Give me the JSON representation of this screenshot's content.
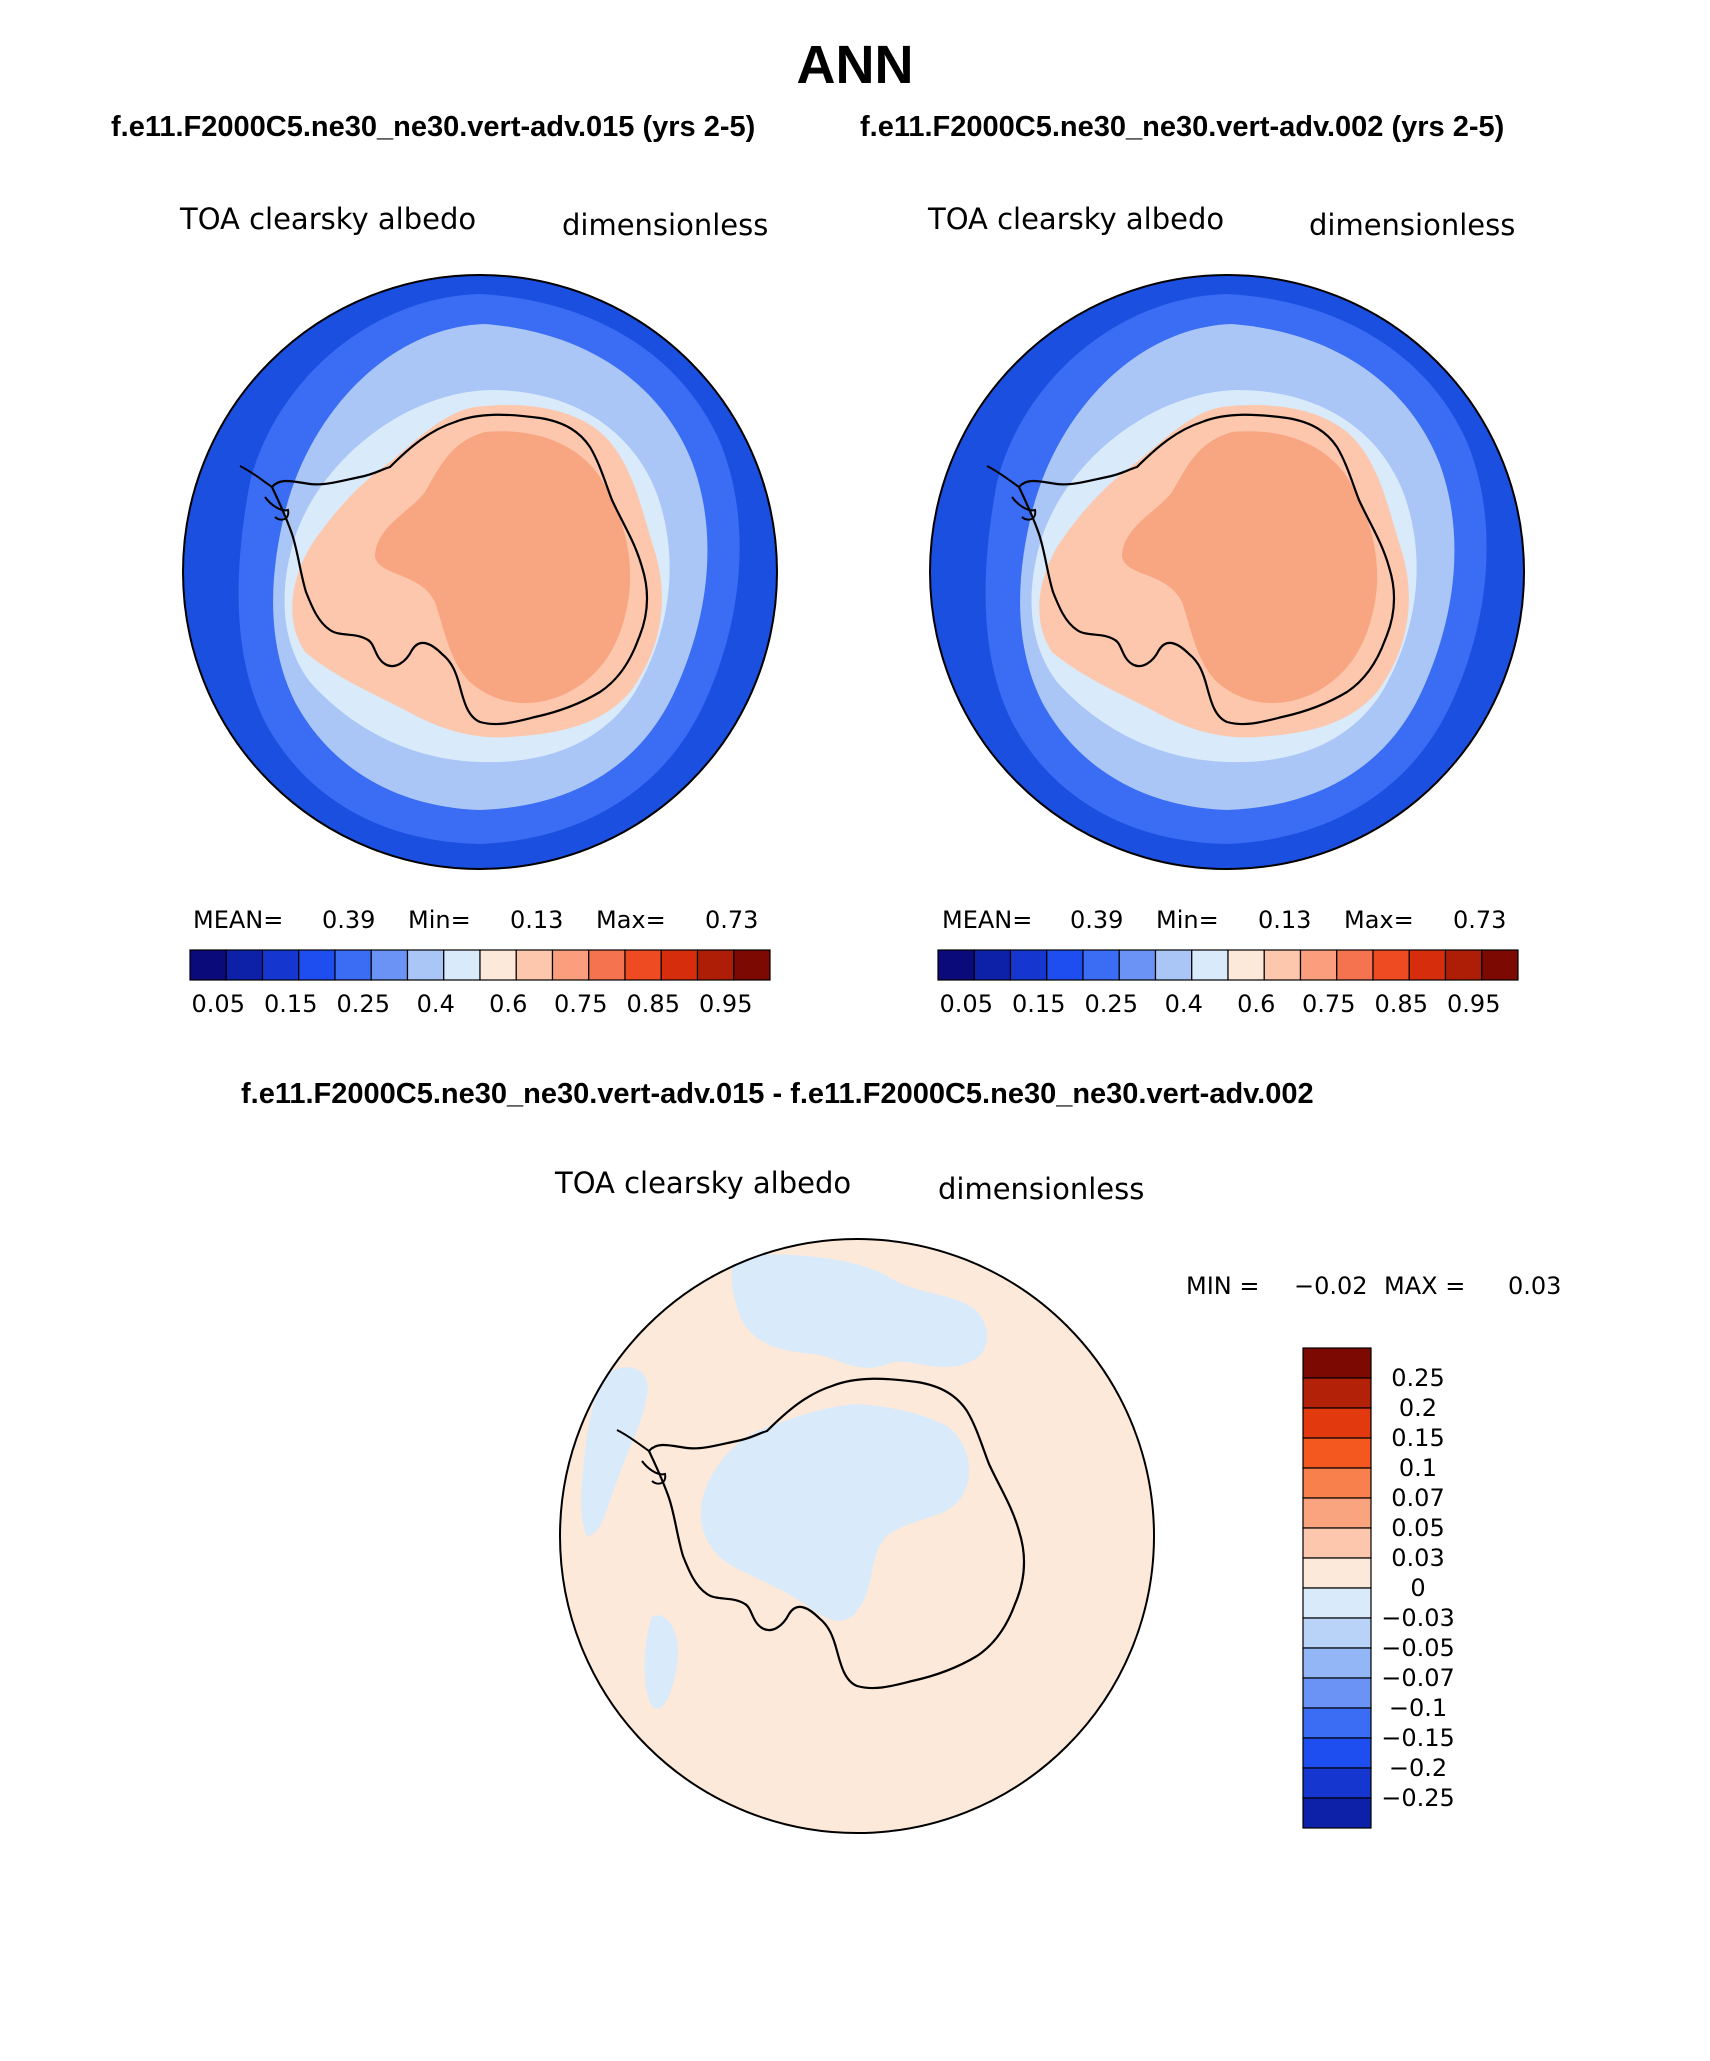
{
  "figure": {
    "title": "ANN",
    "case_header_left": "f.e11.F2000C5.ne30_ne30.vert-adv.015 (yrs 2-5)",
    "case_header_right": "f.e11.F2000C5.ne30_ne30.vert-adv.002 (yrs 2-5)",
    "diff_header": "f.e11.F2000C5.ne30_ne30.vert-adv.015 - f.e11.F2000C5.ne30_ne30.vert-adv.002"
  },
  "panels": [
    {
      "variable": "TOA clearsky albedo",
      "units": "dimensionless",
      "stats": {
        "mean_label": "MEAN=",
        "mean": "0.39",
        "min_label": "Min=",
        "min": "0.13",
        "max_label": "Max=",
        "max": "0.73"
      },
      "colorbar": {
        "colors": [
          "#0a0a7a",
          "#0d21a8",
          "#1537d0",
          "#1f4ef0",
          "#3a6cf4",
          "#6b93f5",
          "#a9c6f7",
          "#d9eafb",
          "#fde9d9",
          "#fcc7ad",
          "#fa9e7e",
          "#f5744f",
          "#ee4b22",
          "#d62e0d",
          "#ae1e07",
          "#7d0a02"
        ],
        "labels": [
          "0.05",
          "0.15",
          "0.25",
          "0.4",
          "0.6",
          "0.75",
          "0.85",
          "0.95"
        ]
      }
    },
    {
      "variable": "TOA clearsky albedo",
      "units": "dimensionless",
      "stats": {
        "mean_label": "MEAN=",
        "mean": "0.39",
        "min_label": "Min=",
        "min": "0.13",
        "max_label": "Max=",
        "max": "0.73"
      },
      "colorbar": {
        "colors": [
          "#0a0a7a",
          "#0d21a8",
          "#1537d0",
          "#1f4ef0",
          "#3a6cf4",
          "#6b93f5",
          "#a9c6f7",
          "#d9eafb",
          "#fde9d9",
          "#fcc7ad",
          "#fa9e7e",
          "#f5744f",
          "#ee4b22",
          "#d62e0d",
          "#ae1e07",
          "#7d0a02"
        ],
        "labels": [
          "0.05",
          "0.15",
          "0.25",
          "0.4",
          "0.6",
          "0.75",
          "0.85",
          "0.95"
        ]
      }
    }
  ],
  "diff_panel": {
    "variable": "TOA clearsky albedo",
    "units": "dimensionless",
    "minmax": {
      "min_label": "MIN =",
      "min": "−0.02",
      "max_label": "MAX =",
      "max": "0.03"
    },
    "colorbar": {
      "colors": [
        "#7d0a02",
        "#b32108",
        "#e23a0e",
        "#f5581f",
        "#f7804d",
        "#f9a47e",
        "#fcc7ad",
        "#fde9d9",
        "#d9eafb",
        "#b9d2f7",
        "#93b6f6",
        "#6b93f5",
        "#3a6cf4",
        "#1f4ef0",
        "#1537d0",
        "#0d21a8"
      ],
      "labels": [
        "0.25",
        "0.2",
        "0.15",
        "0.1",
        "0.07",
        "0.05",
        "0.03",
        "0",
        "−0.03",
        "−0.05",
        "−0.07",
        "−0.1",
        "−0.15",
        "−0.2",
        "−0.25"
      ]
    }
  },
  "colors": {
    "ocean_deep": "#1a4fe0",
    "ice_band_1": "#3a6cf4",
    "ice_band_2": "#a9c6f7",
    "ice_band_3": "#d9eafb",
    "land_low": "#fcc7ad",
    "land_high": "#f8a581",
    "diff_positive": "#fde9d9",
    "diff_negative": "#d9eafb",
    "coast": "#000000"
  }
}
